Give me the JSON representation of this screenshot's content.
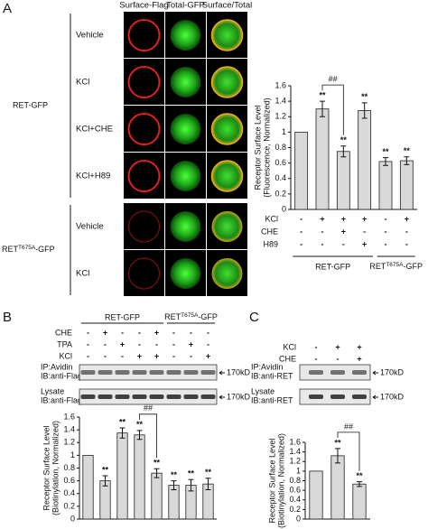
{
  "panel_letters": [
    "A",
    "B",
    "C"
  ],
  "panel_a": {
    "columns": [
      "Surface-Flag",
      "Total-GFP",
      "Surface/Total"
    ],
    "groups": [
      {
        "label": "RET-GFP",
        "rows": [
          "Vehicle",
          "KCl",
          "KCl+CHE",
          "KCl+H89"
        ]
      },
      {
        "label": {
          "base": "RET",
          "sup": "T675A",
          "suffix": "-GFP"
        },
        "rows": [
          "Vehicle",
          "KCl"
        ]
      }
    ]
  },
  "blots_b": [
    {
      "lines": [
        "IP:Avidin",
        "IB:anti-Flag"
      ],
      "marker": "170kD"
    },
    {
      "lines": [
        "Lysate",
        "IB:anti-Flag"
      ],
      "marker": "170kD"
    }
  ],
  "blots_c": [
    {
      "lines": [
        "IP:Avidin",
        "IB:anti-RET"
      ],
      "marker": "170kD"
    },
    {
      "lines": [
        "Lysate",
        "IB:anti-RET"
      ],
      "marker": "170kD"
    }
  ],
  "chart_data": [
    {
      "type": "bar",
      "ylabel": [
        "Receptor Surface Level",
        "(Fluorescence, Normalized)"
      ],
      "values": [
        1,
        1.3,
        0.75,
        1.28,
        0.62,
        0.63
      ],
      "errors": [
        null,
        0.1,
        0.07,
        0.1,
        0.05,
        0.05
      ],
      "annotations": [
        null,
        "**",
        "**",
        "**",
        "**",
        "**"
      ],
      "comparison": {
        "label": "##",
        "bars": [
          1,
          2
        ]
      },
      "color": "#d9d9d9",
      "ylim": [
        0,
        1.6
      ],
      "yticks": [
        0,
        0.2,
        0.4,
        0.6,
        0.8,
        1,
        1.2,
        1.4,
        1.6
      ],
      "conditions": [
        {
          "name": "KCl",
          "signs": [
            "-",
            "+",
            "+",
            "+",
            "-",
            "+"
          ]
        },
        {
          "name": "CHE",
          "signs": [
            "-",
            "-",
            "+",
            "-",
            "-",
            "-"
          ]
        },
        {
          "name": "H89",
          "signs": [
            "-",
            "-",
            "-",
            "+",
            "-",
            "-"
          ]
        }
      ],
      "groups": [
        {
          "label": "RET-GFP",
          "count": 4
        },
        {
          "label": {
            "base": "RET",
            "sup": "T675A",
            "suffix": "-GFP"
          },
          "count": 2
        }
      ]
    },
    {
      "type": "bar",
      "ylabel": [
        "Receptor Surface Level",
        "(Biotinylation, Normalized)"
      ],
      "values": [
        1,
        0.6,
        1.35,
        1.32,
        0.72,
        0.53,
        0.53,
        0.55
      ],
      "errors": [
        null,
        0.08,
        0.08,
        0.07,
        0.07,
        0.07,
        0.09,
        0.09
      ],
      "annotations": [
        null,
        "**",
        "**",
        "**",
        "**",
        "**",
        "**",
        "**"
      ],
      "comparison": {
        "label": "##",
        "bars": [
          3,
          4
        ]
      },
      "color": "#d9d9d9",
      "ylim": [
        0,
        1.6
      ],
      "yticks": [
        0,
        0.2,
        0.4,
        0.6,
        0.8,
        1,
        1.2,
        1.4,
        1.6
      ],
      "conditions": [
        {
          "name": "CHE",
          "signs": [
            "-",
            "+",
            "-",
            "-",
            "+",
            "-",
            "-",
            "-"
          ]
        },
        {
          "name": "TPA",
          "signs": [
            "-",
            "-",
            "+",
            "-",
            "-",
            "-",
            "+",
            "-"
          ]
        },
        {
          "name": "KCl",
          "signs": [
            "-",
            "-",
            "-",
            "+",
            "+",
            "-",
            "-",
            "+"
          ]
        }
      ],
      "groups": [
        {
          "label": "RET-GFP",
          "count": 5
        },
        {
          "label": {
            "base": "RET",
            "sup": "T675A",
            "suffix": "-GFP"
          },
          "count": 3
        }
      ]
    },
    {
      "type": "bar",
      "ylabel": [
        "Receptor Surface Level",
        "(Biotinylation, Normalized)"
      ],
      "values": [
        1,
        1.32,
        0.73
      ],
      "errors": [
        null,
        0.15,
        0.05
      ],
      "annotations": [
        null,
        "**",
        "**"
      ],
      "comparison": {
        "label": "##",
        "bars": [
          1,
          2
        ]
      },
      "color": "#d9d9d9",
      "ylim": [
        0,
        1.6
      ],
      "yticks": [
        0,
        0.2,
        0.4,
        0.6,
        0.8,
        1,
        1.2,
        1.4,
        1.6
      ],
      "conditions": [
        {
          "name": "KCl",
          "signs": [
            "-",
            "+",
            "+"
          ]
        },
        {
          "name": "CHE",
          "signs": [
            "-",
            "-",
            "+"
          ]
        }
      ]
    }
  ]
}
